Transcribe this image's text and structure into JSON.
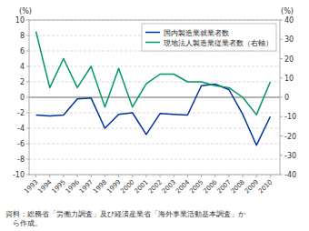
{
  "chart_data": {
    "type": "line",
    "x": [
      1993,
      1994,
      1995,
      1996,
      1997,
      1998,
      1999,
      2000,
      2001,
      2002,
      2003,
      2004,
      2005,
      2006,
      2007,
      2008,
      2009,
      2010
    ],
    "xlim": [
      1992.5,
      2010.7
    ],
    "xticks": [
      1993,
      1994,
      1995,
      1996,
      1997,
      1998,
      1999,
      2000,
      2001,
      2002,
      2003,
      2004,
      2005,
      2006,
      2007,
      2008,
      2009,
      2010
    ],
    "series": [
      {
        "name": "国内製造業就業者数",
        "color": "#003399",
        "values": [
          -2.3,
          -2.4,
          -2.3,
          -0.2,
          -0.1,
          -4.0,
          -2.2,
          -2.0,
          -4.8,
          -2.1,
          -2.2,
          -2.3,
          1.5,
          1.7,
          1.0,
          -2.2,
          -6.2,
          -2.5
        ]
      },
      {
        "name": "現地法人製造業従業者数（右軸）",
        "color": "#009966",
        "axis": "y2",
        "values": [
          34,
          5,
          20,
          5,
          16,
          -5,
          15,
          -5,
          7,
          12,
          12,
          8,
          8,
          6,
          5,
          0,
          -9,
          8
        ]
      }
    ],
    "ylim": [
      -10,
      10
    ],
    "yticks": [
      -10,
      -8,
      -6,
      -4,
      -2,
      0,
      2,
      4,
      6,
      8,
      10
    ],
    "y2lim": [
      -40,
      40
    ],
    "y2ticks": [
      -40,
      -30,
      -20,
      -10,
      0,
      10,
      20,
      30,
      40
    ],
    "y_label": "(%)",
    "y2_label": "(%)",
    "caption": "資料：総務省「労働力調査」及び経済産業省「海外事業活動基本調査」か\n　ら作成。",
    "grid": true,
    "legend": "upper right"
  }
}
